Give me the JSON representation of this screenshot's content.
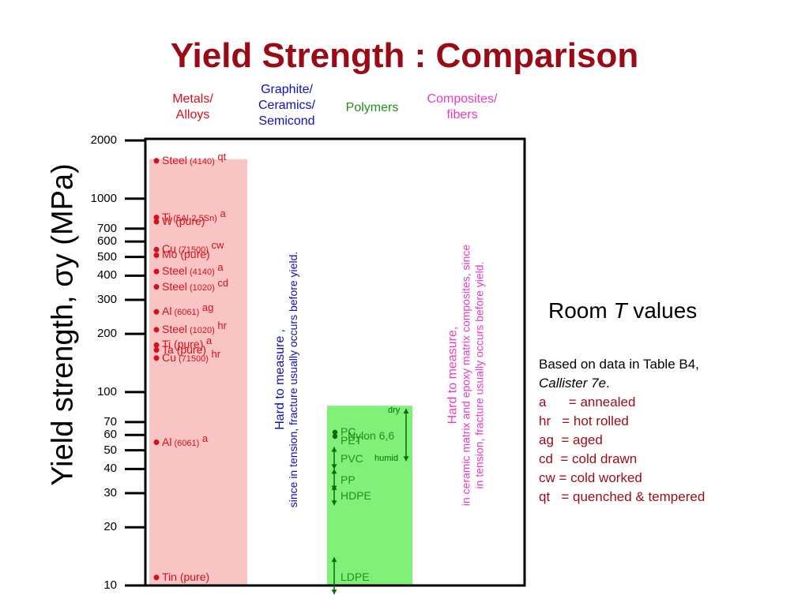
{
  "title": "Yield Strength : Comparison",
  "categories": {
    "metals": "Metals/\nAlloys",
    "ceramics": "Graphite/\nCeramics/\nSemicond",
    "polymers": "Polymers",
    "composites": "Composites/\nfibers"
  },
  "colors": {
    "title": "#9a0b18",
    "metals": "#d4101b",
    "metals_band": "#f8c4c4",
    "ceramics": "#0d10b8",
    "polymers": "#20901c",
    "polymers_band": "#80f078",
    "composites": "#e63bc3",
    "legend_red": "#9a0b18"
  },
  "chart_data": {
    "type": "scatter",
    "yscale": "log",
    "ylim": [
      10,
      2000
    ],
    "ylabel": "Yield strength, σy (MPa)",
    "yticks": [
      {
        "value": 10,
        "label": "10"
      },
      {
        "value": 20,
        "label": "20"
      },
      {
        "value": 30,
        "label": "30"
      },
      {
        "value": 40,
        "label": "40"
      },
      {
        "value": 50,
        "label": "50"
      },
      {
        "value": 60,
        "label": "60"
      },
      {
        "value": 70,
        "label": "70"
      },
      {
        "value": 100,
        "label": "100"
      },
      {
        "value": 200,
        "label": "200"
      },
      {
        "value": 300,
        "label": "300"
      },
      {
        "value": 400,
        "label": "400"
      },
      {
        "value": 500,
        "label": "500"
      },
      {
        "value": 600,
        "label": "600"
      },
      {
        "value": 700,
        "label": "700"
      },
      {
        "value": 1000,
        "label": "1000"
      },
      {
        "value": 2000,
        "label": "2000"
      }
    ],
    "metals": [
      {
        "name": "Steel",
        "grade": "(4140)",
        "cond": "qt",
        "value": 1570
      },
      {
        "name": "Ti",
        "grade": "(5Al-2.5Sn)",
        "cond": "a",
        "value": 800
      },
      {
        "name": "W (pure)",
        "grade": "",
        "cond": "",
        "value": 760
      },
      {
        "name": "Cu",
        "grade": "(71500)",
        "cond": "cw",
        "value": 545
      },
      {
        "name": "Mo (pure)",
        "grade": "",
        "cond": "",
        "value": 510
      },
      {
        "name": "Steel",
        "grade": "(4140)",
        "cond": "a",
        "value": 420
      },
      {
        "name": "Steel",
        "grade": "(1020)",
        "cond": "cd",
        "value": 350
      },
      {
        "name": "Al",
        "grade": "(6061)",
        "cond": "ag",
        "value": 260
      },
      {
        "name": "Steel",
        "grade": "(1020)",
        "cond": "hr",
        "value": 210
      },
      {
        "name": "Ti (pure)",
        "grade": "",
        "cond": "a",
        "value": 175
      },
      {
        "name": "Ta (pure)",
        "grade": "",
        "cond": "",
        "value": 165
      },
      {
        "name": "Cu",
        "grade": "(71500)",
        "cond": "hr",
        "value": 150
      },
      {
        "name": "Al",
        "grade": "(6061)",
        "cond": "a",
        "value": 55
      },
      {
        "name": "Tin (pure)",
        "grade": "",
        "cond": "",
        "value": 11
      }
    ],
    "polymers": [
      {
        "name": "PC",
        "value": 62
      },
      {
        "name": "Nylon 6,6",
        "value": 59,
        "range": [
          44,
          82
        ],
        "range_notes": {
          "high": "dry",
          "low": "humid"
        }
      },
      {
        "name": "PET",
        "value": 56
      },
      {
        "name": "PVC",
        "value": 45,
        "range": [
          40,
          52
        ]
      },
      {
        "name": "PP",
        "value": 35,
        "range": [
          31,
          40
        ]
      },
      {
        "name": "HDPE",
        "value": 29,
        "range": [
          26,
          33
        ]
      },
      {
        "name": "LDPE",
        "value": 11,
        "range": [
          9,
          14
        ]
      }
    ],
    "metals_band": [
      10,
      1600
    ],
    "polymers_band": [
      10,
      85
    ]
  },
  "notes": {
    "ceramics_line1": "Hard to measure",
    "ceramics_comma": ",",
    "ceramics_line2": "since in tension, fracture usually occurs before yield.",
    "composites_line1": "Hard to measure,",
    "composites_line2": "in ceramic matrix and epoxy matrix composites, since",
    "composites_line3": "in tension, fracture usually occurs before yield."
  },
  "room_t": {
    "prefix": "Room ",
    "italic": "T",
    "suffix": " values"
  },
  "legend": {
    "line1": "Based on data in Table B4,",
    "line2_italic": "Callister 7e",
    "line2_dot": ".",
    "items": [
      "a      = annealed",
      "hr   = hot rolled",
      "ag  = aged",
      "cd  = cold drawn",
      "cw = cold worked",
      "qt   = quenched & tempered"
    ]
  }
}
